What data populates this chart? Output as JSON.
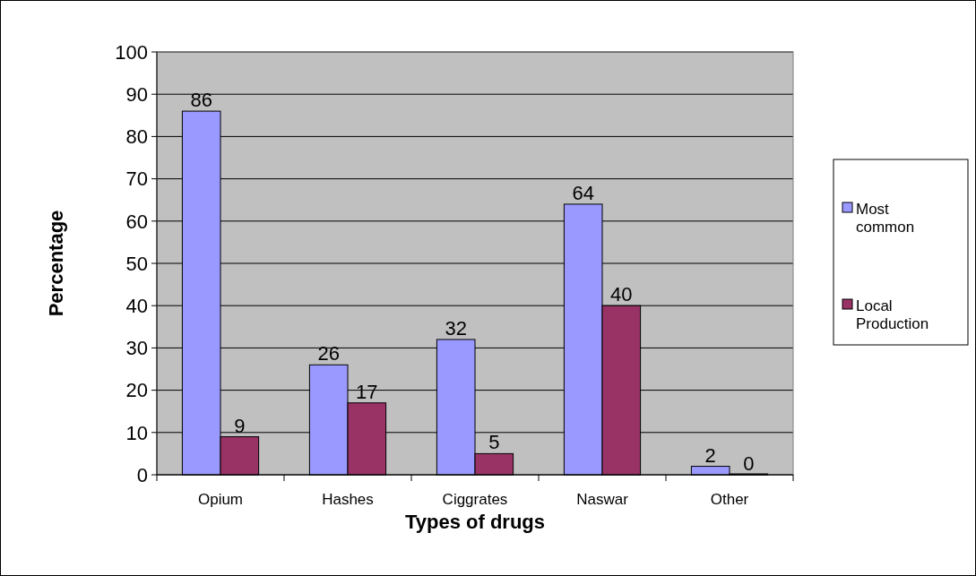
{
  "chart_data": {
    "type": "bar",
    "xlabel": "Types of drugs",
    "ylabel": "Percentage",
    "categories": [
      "Opium",
      "Hashes",
      "Ciggrates",
      "Naswar",
      "Other"
    ],
    "series": [
      {
        "name": "Most common",
        "color": "#9999ff",
        "values": [
          86,
          26,
          32,
          64,
          2
        ]
      },
      {
        "name": "Local Production",
        "color": "#993366",
        "values": [
          9,
          17,
          5,
          40,
          0
        ]
      }
    ],
    "ylim": [
      0,
      100
    ],
    "yticks": [
      0,
      10,
      20,
      30,
      40,
      50,
      60,
      70,
      80,
      90,
      100
    ],
    "grid": "y",
    "legend": "right",
    "data_labels": true
  }
}
